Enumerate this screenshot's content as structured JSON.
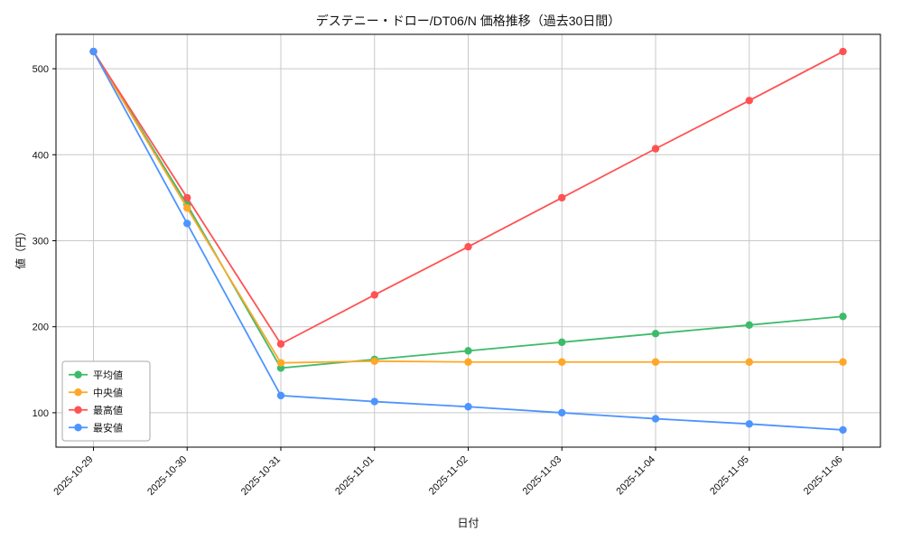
{
  "chart_data": {
    "type": "line",
    "title": "デステニー・ドロー/DT06/N 価格推移（過去30日間）",
    "xlabel": "日付",
    "ylabel": "値（円）",
    "grid": true,
    "legend_position": "lower left",
    "ylim": [
      60,
      540
    ],
    "yticks": [
      100,
      200,
      300,
      400,
      500
    ],
    "x": [
      "2025-10-29",
      "2025-10-30",
      "2025-10-31",
      "2025-11-01",
      "2025-11-02",
      "2025-11-03",
      "2025-11-04",
      "2025-11-05",
      "2025-11-06"
    ],
    "series": [
      {
        "name": "平均値",
        "key": "average",
        "color": "#3dbb6a",
        "values": [
          520,
          342,
          152,
          162,
          172,
          182,
          192,
          202,
          212
        ]
      },
      {
        "name": "中央値",
        "key": "median",
        "color": "#ffa726",
        "values": [
          520,
          338,
          158,
          160,
          159,
          159,
          159,
          159,
          159
        ]
      },
      {
        "name": "最高値",
        "key": "highest",
        "color": "#ff5252",
        "values": [
          520,
          350,
          180,
          237,
          293,
          350,
          407,
          463,
          520
        ]
      },
      {
        "name": "最安値",
        "key": "lowest",
        "color": "#4d94ff",
        "values": [
          520,
          320,
          120,
          113,
          107,
          100,
          93,
          87,
          80
        ]
      }
    ]
  }
}
